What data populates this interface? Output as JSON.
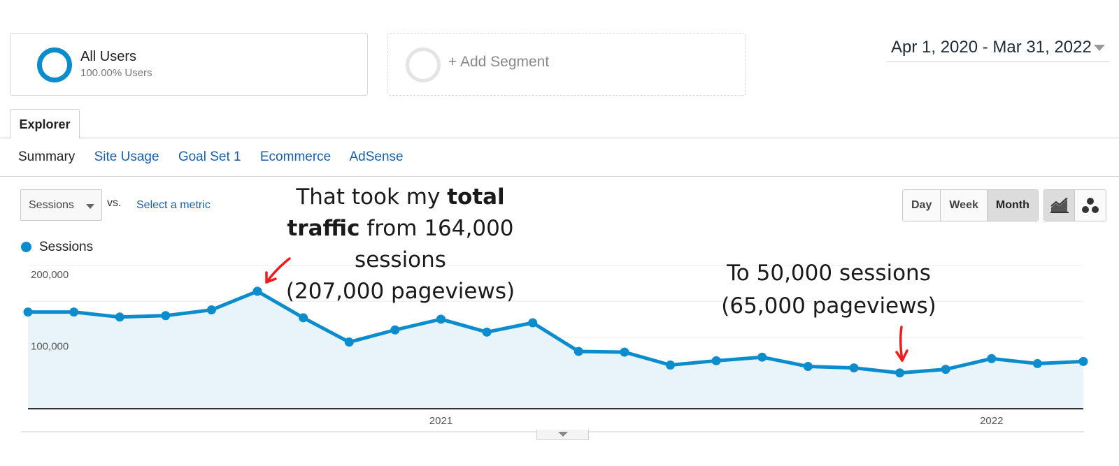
{
  "segments": {
    "all_users": {
      "name": "All Users",
      "percent": "100.00% Users"
    },
    "add_segment": {
      "label": "+ Add Segment"
    }
  },
  "date_range": {
    "label": "Apr 1, 2020 - Mar 31, 2022"
  },
  "tabs": [
    {
      "label": "Explorer"
    }
  ],
  "subnav": [
    {
      "label": "Summary",
      "active": true
    },
    {
      "label": "Site Usage"
    },
    {
      "label": "Goal Set 1"
    },
    {
      "label": "Ecommerce"
    },
    {
      "label": "AdSense"
    }
  ],
  "controls": {
    "metric": "Sessions",
    "vs": "vs.",
    "select_metric": "Select a metric",
    "periods": [
      {
        "label": "Day"
      },
      {
        "label": "Week"
      },
      {
        "label": "Month",
        "active": true
      }
    ],
    "views": [
      {
        "icon": "line-chart-icon",
        "active": true
      },
      {
        "icon": "motion-chart-icon"
      }
    ]
  },
  "colors": {
    "accent": "#0b8dcd",
    "fill": "#e8f3fa",
    "annotation_arrow": "#ee1c1c",
    "link": "#1a5fa8"
  },
  "annotations": {
    "first": {
      "line1": "That took my ",
      "line1_bold": "total",
      "line2_bold": "traffic",
      "line2": " from 164,000",
      "line3": "sessions",
      "line4": "(207,000 pageviews)"
    },
    "second": {
      "line1": "To 50,000 sessions",
      "line2": "(65,000 pageviews)"
    }
  },
  "chart_data": {
    "type": "area",
    "legend": [
      "Sessions"
    ],
    "x": [
      "2020-04",
      "2020-05",
      "2020-06",
      "2020-07",
      "2020-08",
      "2020-09",
      "2020-10",
      "2020-11",
      "2020-12",
      "2021-01",
      "2021-02",
      "2021-03",
      "2021-04",
      "2021-05",
      "2021-06",
      "2021-07",
      "2021-08",
      "2021-09",
      "2021-10",
      "2021-11",
      "2021-12",
      "2022-01",
      "2022-02",
      "2022-03"
    ],
    "series": [
      {
        "name": "Sessions",
        "values": [
          135000,
          135000,
          128000,
          130000,
          138000,
          164000,
          127000,
          93000,
          110000,
          125000,
          107000,
          120000,
          80000,
          79000,
          61000,
          67000,
          72000,
          59000,
          57000,
          50000,
          55000,
          70000,
          63000,
          66000
        ]
      }
    ],
    "ylim": [
      0,
      200000
    ],
    "yticks": [
      {
        "value": 200000,
        "label": "200,000"
      },
      {
        "value": 100000,
        "label": "100,000"
      }
    ],
    "xticks": [
      {
        "label": "2021",
        "position_month": 9
      },
      {
        "label": "2022",
        "position_month": 21
      }
    ],
    "grid": true
  }
}
